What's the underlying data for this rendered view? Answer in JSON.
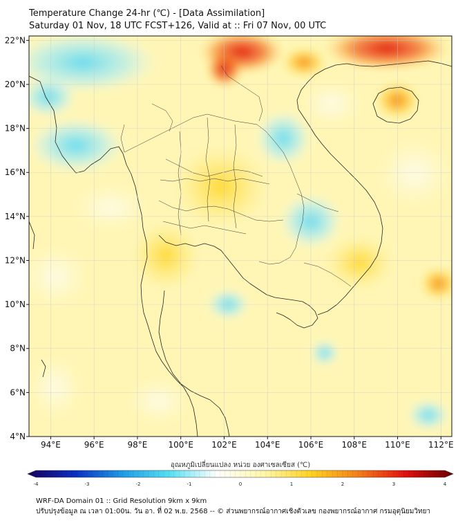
{
  "header": {
    "title": "Temperature Change 24-hr (℃) - [Data Assimilation]",
    "subtitle": "Saturday 01 Nov, 18 UTC FCST+126, Valid at :: Fri 07 Nov, 00 UTC"
  },
  "map": {
    "lat_labels": [
      "22°N",
      "20°N",
      "18°N",
      "16°N",
      "14°N",
      "12°N",
      "10°N",
      "8°N",
      "6°N",
      "4°N"
    ],
    "lat_values": [
      22,
      20,
      18,
      16,
      14,
      12,
      10,
      8,
      6,
      4
    ],
    "lon_labels": [
      "94°E",
      "96°E",
      "98°E",
      "100°E",
      "102°E",
      "104°E",
      "106°E",
      "108°E",
      "110°E",
      "112°E"
    ],
    "lon_values": [
      94,
      96,
      98,
      100,
      102,
      104,
      106,
      108,
      110,
      112
    ],
    "lat_range": [
      4,
      22.2
    ],
    "lon_range": [
      93,
      112.5
    ],
    "grid": true
  },
  "colorbar": {
    "label": "อุณหภูมิเปลี่ยนแปลง หน่วย องศาเซลเซียส (℃)",
    "ticks": [
      "-4",
      "-3",
      "-2",
      "-1",
      "0",
      "1",
      "2",
      "3",
      "4"
    ],
    "tick_values": [
      -4,
      -3,
      -2,
      -1,
      0,
      1,
      2,
      3,
      4
    ],
    "colors": [
      "#1a005e",
      "#0a2ec0",
      "#1e9be6",
      "#56e0f4",
      "#ffffff",
      "#fff7a8",
      "#ffd21e",
      "#f47d1a",
      "#e01010",
      "#6a0000"
    ]
  },
  "footer": {
    "line1": "WRF-DA Domain 01 :: Grid Resolution 9km x 9km",
    "line2": "ปรับปรุงข้อมูล ณ เวลา 01:00น. วัน อา. ที่ 02 พ.ย. 2568 -- © ส่วนพยากรณ์อากาศเชิงตัวเลข กองพยากรณ์อากาศ กรมอุตุนิยมวิทยา"
  }
}
